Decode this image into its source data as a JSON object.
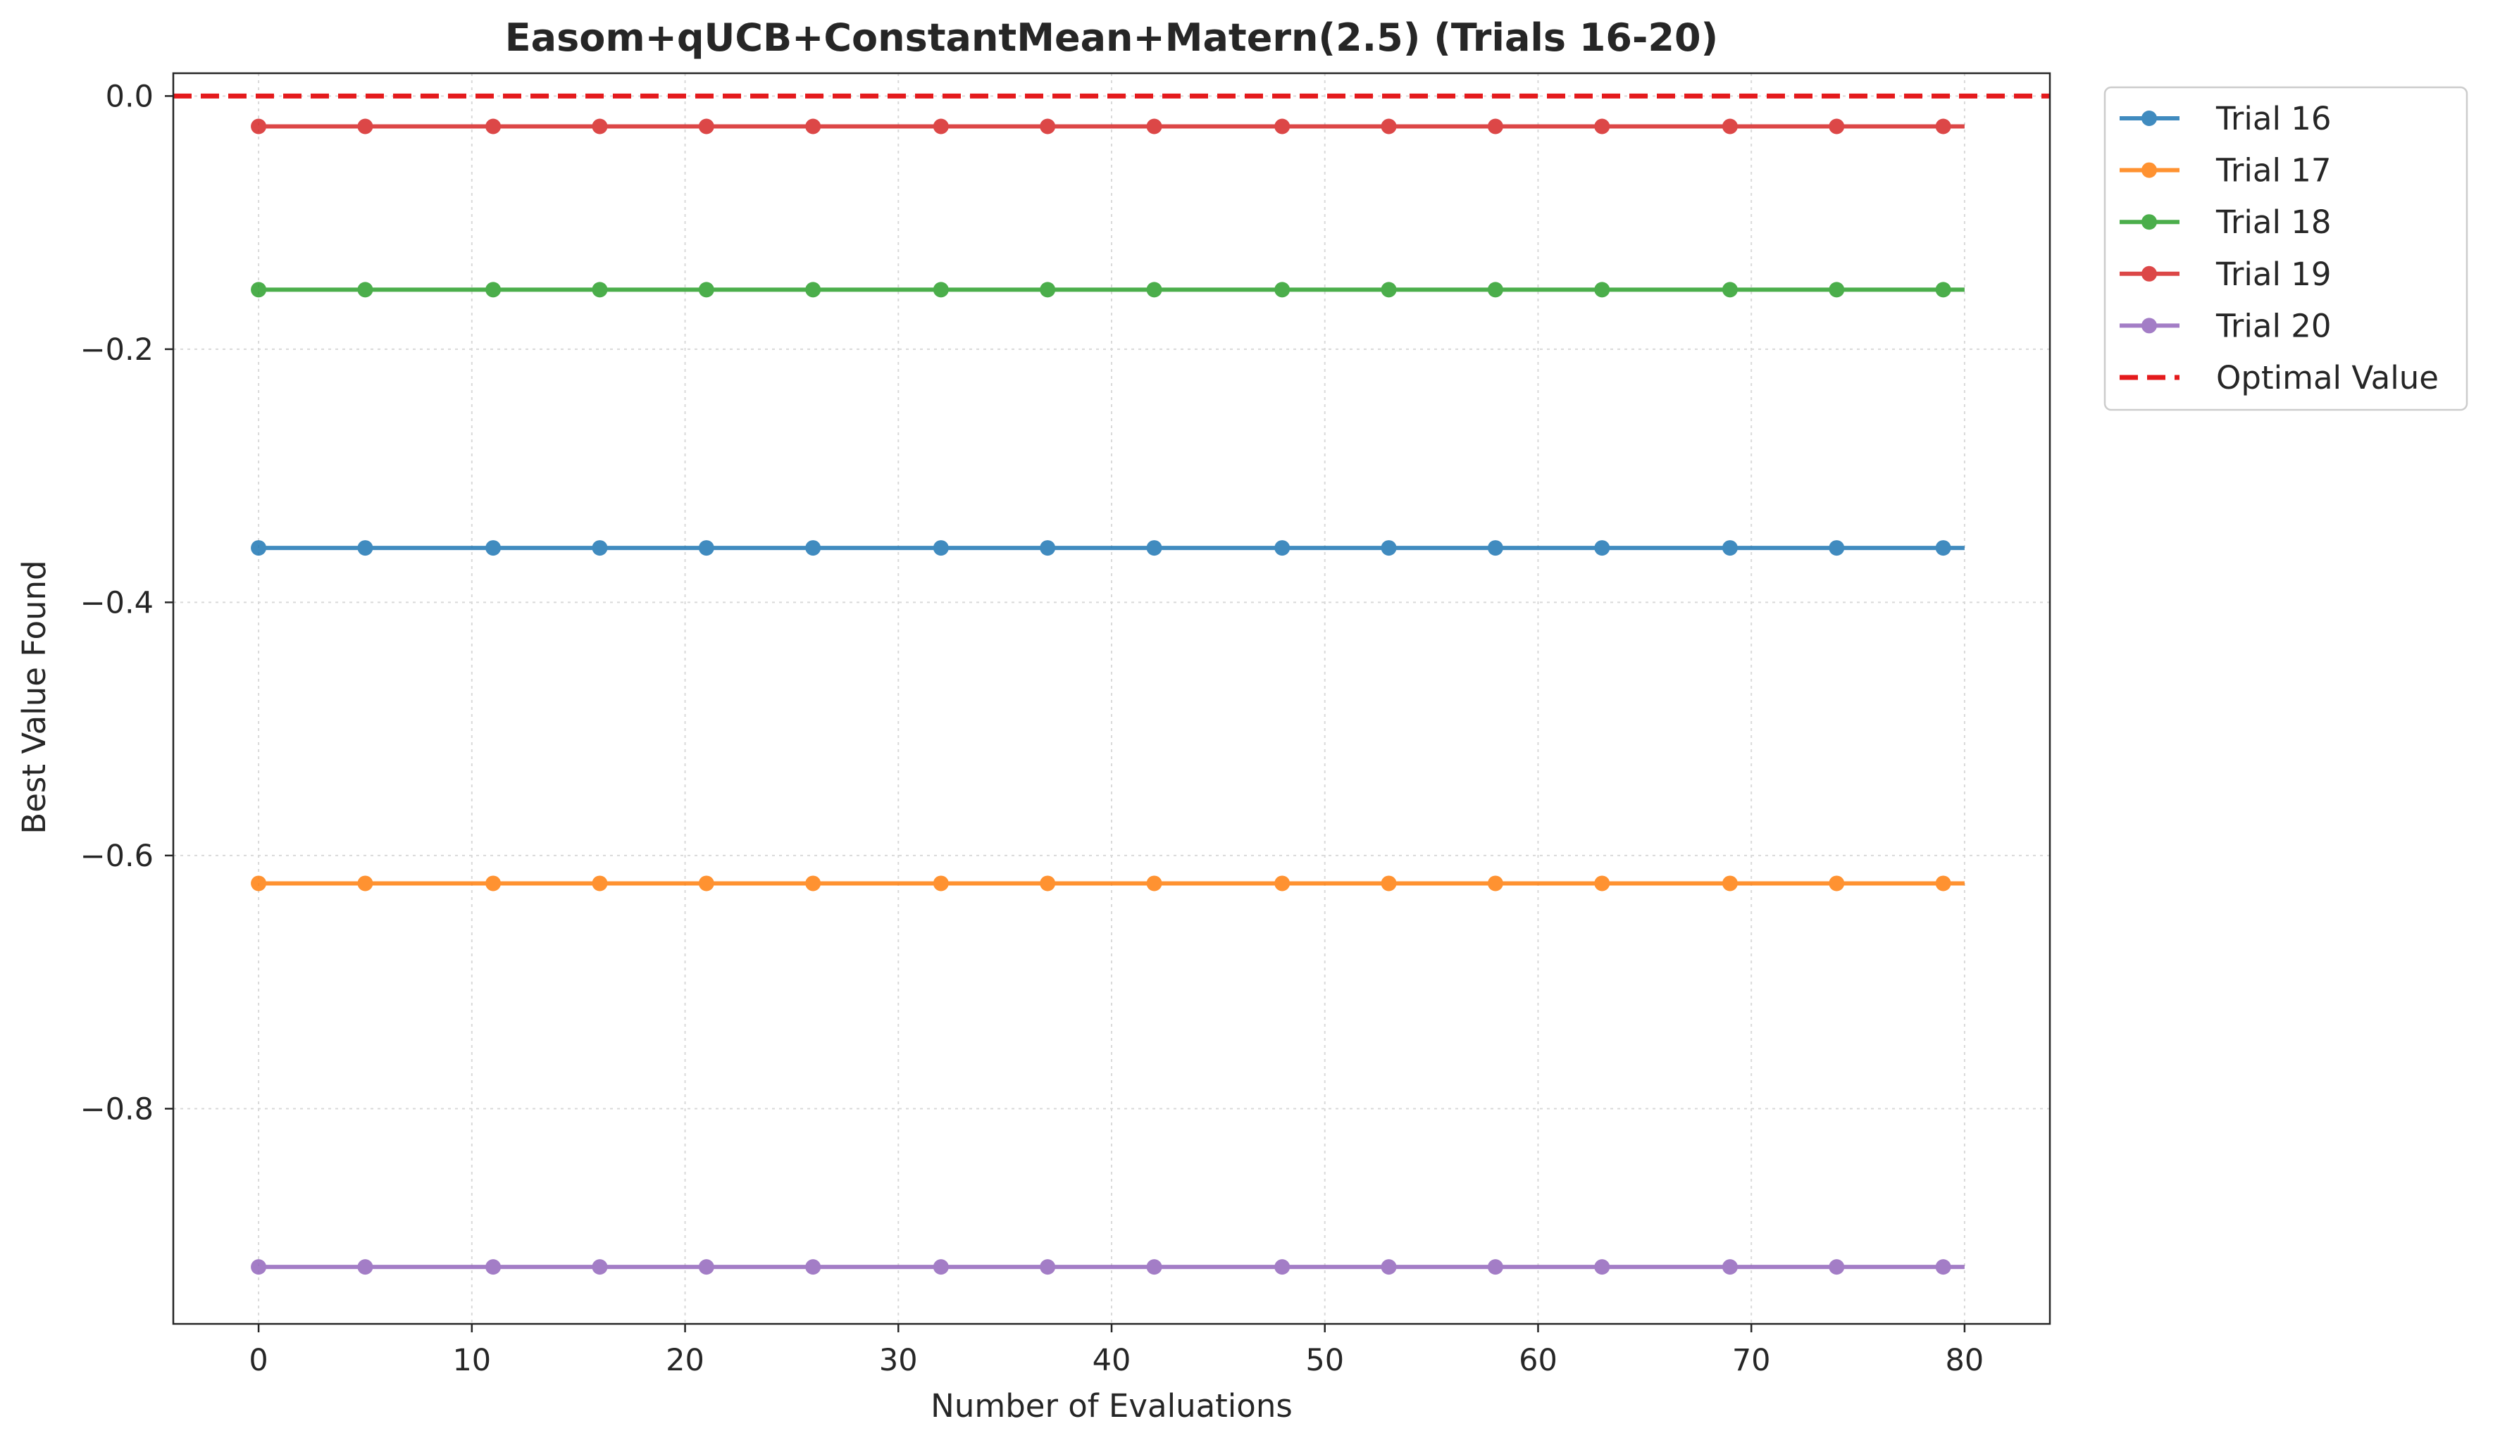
{
  "chart_data": {
    "type": "line",
    "title": "Easom+qUCB+ConstantMean+Matern(2.5) (Trials 16-20)",
    "xlabel": "Number of Evaluations",
    "ylabel": "Best Value Found",
    "xlim": [
      -4,
      84
    ],
    "ylim": [
      -0.97,
      0.018
    ],
    "xticks": [
      0,
      10,
      20,
      30,
      40,
      50,
      60,
      70,
      80
    ],
    "xtick_labels": [
      "0",
      "10",
      "20",
      "30",
      "40",
      "50",
      "60",
      "70",
      "80"
    ],
    "yticks": [
      0.0,
      -0.2,
      -0.4,
      -0.6,
      -0.8
    ],
    "ytick_labels": [
      "0.0",
      "−0.2",
      "−0.4",
      "−0.6",
      "−0.8"
    ],
    "grid": true,
    "legend_position": "outside-top-right",
    "x": [
      0,
      5,
      11,
      16,
      21,
      26,
      32,
      37,
      42,
      48,
      53,
      58,
      63,
      69,
      74,
      79
    ],
    "line_end_x": 80,
    "series": [
      {
        "name": "Trial 16",
        "color": "#1f77b4",
        "constant_value": -0.357
      },
      {
        "name": "Trial 17",
        "color": "#ff7f0e",
        "constant_value": -0.622
      },
      {
        "name": "Trial 18",
        "color": "#2ca02c",
        "constant_value": -0.153
      },
      {
        "name": "Trial 19",
        "color": "#d62728",
        "constant_value": -0.024
      },
      {
        "name": "Trial 20",
        "color": "#9467bd",
        "constant_value": -0.925
      }
    ],
    "reference_line": {
      "name": "Optimal Value",
      "value": 0.0,
      "color": "#e41a1c",
      "style": "dashed"
    }
  }
}
